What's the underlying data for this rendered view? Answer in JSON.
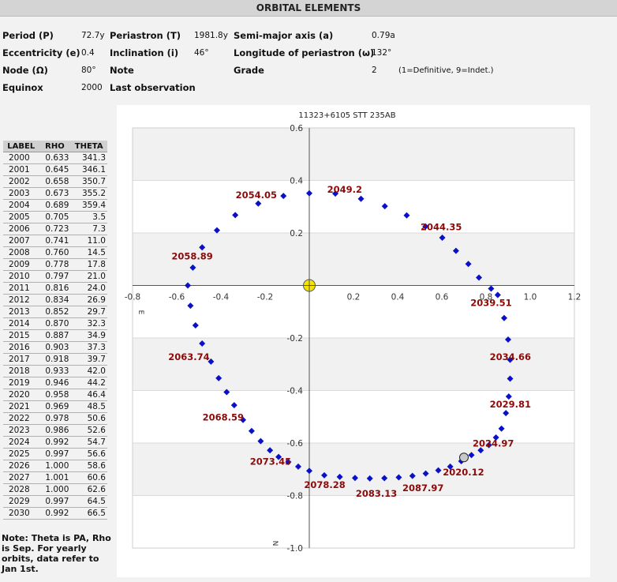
{
  "header": {
    "title": "ORBITAL ELEMENTS"
  },
  "elements": {
    "period": {
      "label": "Period (P)",
      "value": "72.7y"
    },
    "periastron": {
      "label": "Periastron (T)",
      "value": "1981.8y"
    },
    "semimajor": {
      "label": "Semi-major axis (a)",
      "value": "0.79a"
    },
    "eccentricity": {
      "label": "Eccentricity (e)",
      "value": "0.4"
    },
    "inclination": {
      "label": "Inclination (i)",
      "value": "46°"
    },
    "longitude": {
      "label": "Longitude of periastron (ω)",
      "value": "132°"
    },
    "node": {
      "label": "Node (Ω)",
      "value": "80°"
    },
    "note": {
      "label": "Note",
      "value": ""
    },
    "grade": {
      "label": "Grade",
      "value": "2",
      "scale": "(1=Definitive, 9=Indet.)"
    },
    "equinox": {
      "label": "Equinox",
      "value": "2000"
    },
    "last_observation": {
      "label": "Last observation",
      "value": ""
    }
  },
  "table": {
    "headers": [
      "LABEL",
      "RHO",
      "THETA"
    ],
    "rows": [
      [
        "2000",
        "0.633",
        "341.3"
      ],
      [
        "2001",
        "0.645",
        "346.1"
      ],
      [
        "2002",
        "0.658",
        "350.7"
      ],
      [
        "2003",
        "0.673",
        "355.2"
      ],
      [
        "2004",
        "0.689",
        "359.4"
      ],
      [
        "2005",
        "0.705",
        "3.5"
      ],
      [
        "2006",
        "0.723",
        "7.3"
      ],
      [
        "2007",
        "0.741",
        "11.0"
      ],
      [
        "2008",
        "0.760",
        "14.5"
      ],
      [
        "2009",
        "0.778",
        "17.8"
      ],
      [
        "2010",
        "0.797",
        "21.0"
      ],
      [
        "2011",
        "0.816",
        "24.0"
      ],
      [
        "2012",
        "0.834",
        "26.9"
      ],
      [
        "2013",
        "0.852",
        "29.7"
      ],
      [
        "2014",
        "0.870",
        "32.3"
      ],
      [
        "2015",
        "0.887",
        "34.9"
      ],
      [
        "2016",
        "0.903",
        "37.3"
      ],
      [
        "2017",
        "0.918",
        "39.7"
      ],
      [
        "2018",
        "0.933",
        "42.0"
      ],
      [
        "2019",
        "0.946",
        "44.2"
      ],
      [
        "2020",
        "0.958",
        "46.4"
      ],
      [
        "2021",
        "0.969",
        "48.5"
      ],
      [
        "2022",
        "0.978",
        "50.6"
      ],
      [
        "2023",
        "0.986",
        "52.6"
      ],
      [
        "2024",
        "0.992",
        "54.7"
      ],
      [
        "2025",
        "0.997",
        "56.6"
      ],
      [
        "2026",
        "1.000",
        "58.6"
      ],
      [
        "2027",
        "1.001",
        "60.6"
      ],
      [
        "2028",
        "1.000",
        "62.6"
      ],
      [
        "2029",
        "0.997",
        "64.5"
      ],
      [
        "2030",
        "0.992",
        "66.5"
      ]
    ]
  },
  "note_text": "Note: Theta is PA, Rho is Sep. For yearly orbits, data refer to Jan 1st.",
  "chart_data": {
    "type": "scatter",
    "title": "11323+6105 STT 235AB",
    "xlim": [
      -0.8,
      1.2
    ],
    "ylim": [
      -1.0,
      0.6
    ],
    "y_inverted": true,
    "x_ticks": [
      "-0.8",
      "-0.6",
      "-0.4",
      "-0.2",
      "0.2",
      "0.4",
      "0.6",
      "0.8",
      "1.0",
      "1.2"
    ],
    "x_tick_values": [
      -0.8,
      -0.6,
      -0.4,
      -0.2,
      0.2,
      0.4,
      0.6,
      0.8,
      1.0,
      1.2
    ],
    "y_ticks": [
      "0.6",
      "0.4",
      "0.2",
      "-0.2",
      "-0.4",
      "-0.6",
      "-0.8",
      "-1.0"
    ],
    "y_tick_values": [
      0.6,
      0.4,
      0.2,
      -0.2,
      -0.4,
      -0.6,
      -0.8,
      -1.0
    ],
    "axis_labels": {
      "east": "E",
      "north": "N"
    },
    "colors": {
      "points": "#0a10c8",
      "labels": "#8b0a0a",
      "primary": "#f5e400",
      "current": "#c8c8c8",
      "band": "#f1f1f1"
    },
    "primary": {
      "x": 0,
      "y": 0
    },
    "current_position": {
      "x": 0.7,
      "y": -0.655
    },
    "points": [
      {
        "x": 0.853,
        "y": -0.036
      },
      {
        "x": 0.882,
        "y": -0.124
      },
      {
        "x": 0.9,
        "y": -0.206
      },
      {
        "x": 0.909,
        "y": -0.283
      },
      {
        "x": 0.909,
        "y": -0.355
      },
      {
        "x": 0.903,
        "y": -0.423
      },
      {
        "x": 0.89,
        "y": -0.486
      },
      {
        "x": 0.87,
        "y": -0.545
      },
      {
        "x": 0.845,
        "y": -0.579
      },
      {
        "x": 0.813,
        "y": -0.608
      },
      {
        "x": 0.776,
        "y": -0.628
      },
      {
        "x": 0.734,
        "y": -0.646
      },
      {
        "x": 0.688,
        "y": -0.669
      },
      {
        "x": 0.638,
        "y": -0.69
      },
      {
        "x": 0.584,
        "y": -0.704
      },
      {
        "x": 0.527,
        "y": -0.716
      },
      {
        "x": 0.467,
        "y": -0.725
      },
      {
        "x": 0.405,
        "y": -0.731
      },
      {
        "x": 0.34,
        "y": -0.734
      },
      {
        "x": 0.274,
        "y": -0.735
      },
      {
        "x": 0.207,
        "y": -0.733
      },
      {
        "x": 0.138,
        "y": -0.729
      },
      {
        "x": 0.068,
        "y": -0.723
      },
      {
        "x": 0.0,
        "y": -0.706
      },
      {
        "x": -0.05,
        "y": -0.69
      },
      {
        "x": -0.095,
        "y": -0.672
      },
      {
        "x": -0.139,
        "y": -0.653
      },
      {
        "x": -0.178,
        "y": -0.628
      },
      {
        "x": -0.22,
        "y": -0.593
      },
      {
        "x": -0.261,
        "y": -0.554
      },
      {
        "x": -0.3,
        "y": -0.512
      },
      {
        "x": -0.34,
        "y": -0.456
      },
      {
        "x": -0.374,
        "y": -0.406
      },
      {
        "x": -0.41,
        "y": -0.353
      },
      {
        "x": -0.445,
        "y": -0.29
      },
      {
        "x": -0.485,
        "y": -0.221
      },
      {
        "x": -0.515,
        "y": -0.152
      },
      {
        "x": -0.538,
        "y": -0.077
      },
      {
        "x": -0.55,
        "y": 0.0
      },
      {
        "x": -0.527,
        "y": 0.068
      },
      {
        "x": -0.485,
        "y": 0.145
      },
      {
        "x": -0.418,
        "y": 0.21
      },
      {
        "x": -0.335,
        "y": 0.268
      },
      {
        "x": -0.231,
        "y": 0.312
      },
      {
        "x": -0.117,
        "y": 0.341
      },
      {
        "x": 0.0,
        "y": 0.351
      },
      {
        "x": 0.118,
        "y": 0.35
      },
      {
        "x": 0.234,
        "y": 0.33
      },
      {
        "x": 0.342,
        "y": 0.302
      },
      {
        "x": 0.441,
        "y": 0.267
      },
      {
        "x": 0.526,
        "y": 0.225
      },
      {
        "x": 0.602,
        "y": 0.182
      },
      {
        "x": 0.664,
        "y": 0.132
      },
      {
        "x": 0.72,
        "y": 0.082
      },
      {
        "x": 0.768,
        "y": 0.03
      },
      {
        "x": 0.823,
        "y": -0.012
      }
    ],
    "annotations": [
      {
        "text": "2049.2",
        "x": 0.16,
        "y": 0.365
      },
      {
        "text": "2054.05",
        "x": -0.24,
        "y": 0.345
      },
      {
        "text": "2044.35",
        "x": 0.597,
        "y": 0.222
      },
      {
        "text": "2058.89",
        "x": -0.53,
        "y": 0.112
      },
      {
        "text": "2039.51",
        "x": 0.823,
        "y": -0.066
      },
      {
        "text": "2034.66",
        "x": 0.91,
        "y": -0.272
      },
      {
        "text": "2063.74",
        "x": -0.545,
        "y": -0.272
      },
      {
        "text": "2029.81",
        "x": 0.91,
        "y": -0.452
      },
      {
        "text": "2068.59",
        "x": -0.39,
        "y": -0.502
      },
      {
        "text": "2024.97",
        "x": 0.833,
        "y": -0.602
      },
      {
        "text": "2073.45",
        "x": -0.175,
        "y": -0.67
      },
      {
        "text": "2020.12",
        "x": 0.698,
        "y": -0.712
      },
      {
        "text": "2078.28",
        "x": 0.07,
        "y": -0.76
      },
      {
        "text": "2087.97",
        "x": 0.515,
        "y": -0.772
      },
      {
        "text": "2083.13",
        "x": 0.304,
        "y": -0.792
      }
    ]
  }
}
